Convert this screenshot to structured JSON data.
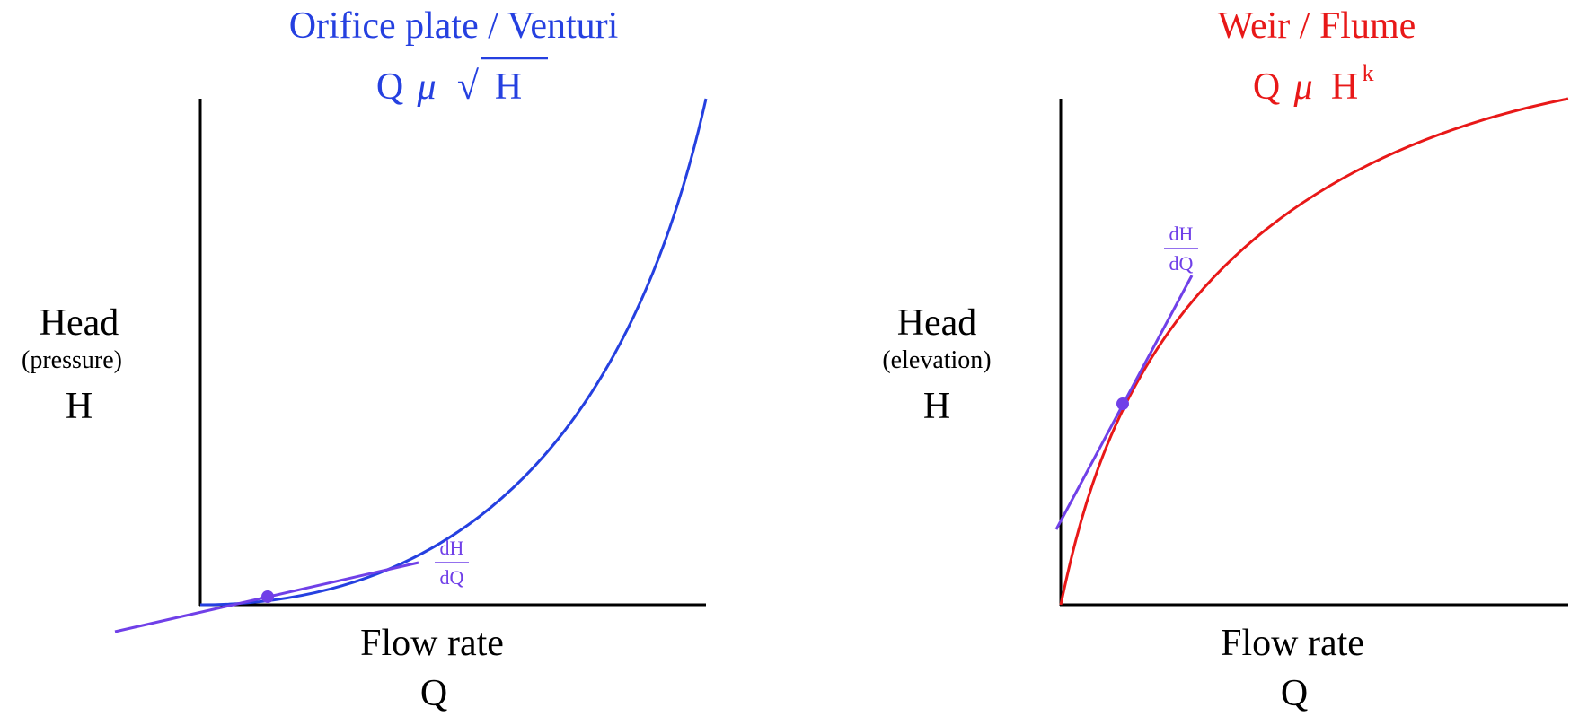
{
  "left_panel": {
    "title": "Orifice plate / Venturi",
    "formula": {
      "q": "Q",
      "mu": "μ",
      "radical": "√",
      "h": "H"
    },
    "y_label": {
      "line1": "Head",
      "line2": "(pressure)",
      "line3": "H"
    },
    "x_label": {
      "line1": "Flow rate",
      "line2": "Q"
    },
    "slope_label": {
      "numerator": "dH",
      "denominator": "dQ"
    },
    "color": "#2540e0"
  },
  "right_panel": {
    "title": "Weir / Flume",
    "formula": {
      "q": "Q",
      "mu": "μ",
      "h": "H",
      "exponent": "k"
    },
    "y_label": {
      "line1": "Head",
      "line2": "(elevation)",
      "line3": "H"
    },
    "x_label": {
      "line1": "Flow rate",
      "line2": "Q"
    },
    "slope_label": {
      "numerator": "dH",
      "denominator": "dQ"
    },
    "color": "#e81818"
  },
  "tangent_color": "#7040e8",
  "axis_color": "#000000"
}
